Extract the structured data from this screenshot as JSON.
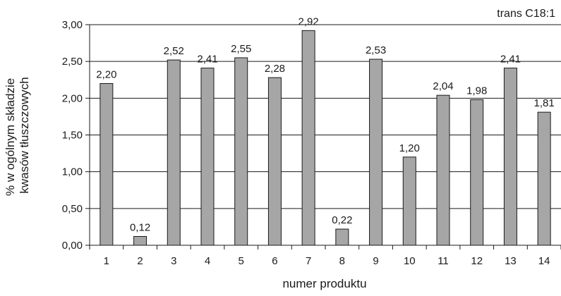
{
  "chart_data": {
    "type": "bar",
    "title": "trans C18:1",
    "xlabel": "numer produktu",
    "ylabel_lines": [
      "% w ogólnym składzie",
      "kwasów tłuszczowych"
    ],
    "categories": [
      "1",
      "2",
      "3",
      "4",
      "5",
      "6",
      "7",
      "8",
      "9",
      "10",
      "11",
      "12",
      "13",
      "14"
    ],
    "values": [
      2.2,
      0.12,
      2.52,
      2.41,
      2.55,
      2.28,
      2.92,
      0.22,
      2.53,
      1.2,
      2.04,
      1.98,
      2.41,
      1.81
    ],
    "data_labels": [
      "2,20",
      "0,12",
      "2,52",
      "2,41",
      "2,55",
      "2,28",
      "2,92",
      "0,22",
      "2,53",
      "1,20",
      "2,04",
      "1,98",
      "2,41",
      "1,81"
    ],
    "y_ticks": [
      0,
      0.5,
      1.0,
      1.5,
      2.0,
      2.5,
      3.0
    ],
    "y_tick_labels": [
      "0,00",
      "0,50",
      "1,00",
      "1,50",
      "2,00",
      "2,50",
      "3,00"
    ],
    "ylim": [
      0,
      3.0
    ],
    "grid": true,
    "bar_color": "#a6a6a6",
    "bar_edge_color": "#1a1a1a"
  }
}
